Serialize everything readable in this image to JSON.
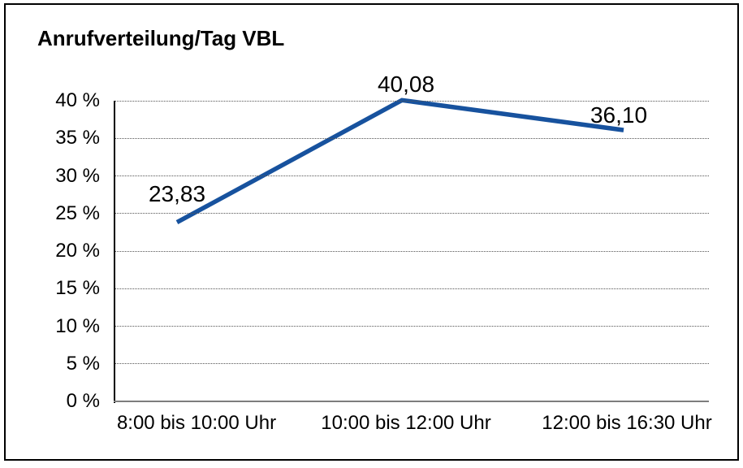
{
  "chart_data": {
    "type": "line",
    "title": "Anrufverteilung/Tag VBL",
    "categories": [
      "8:00 bis 10:00 Uhr",
      "10:00 bis 12:00 Uhr",
      "12:00 bis 16:30 Uhr"
    ],
    "series": [
      {
        "name": "Anrufverteilung",
        "values": [
          23.83,
          40.08,
          36.1
        ]
      }
    ],
    "point_labels": [
      "23,83",
      "40,08",
      "36,10"
    ],
    "xlabel": "",
    "ylabel": "",
    "ylim": [
      0,
      40
    ],
    "ytick_step": 5,
    "ytick_labels": [
      "0 %",
      "5 %",
      "10 %",
      "15 %",
      "20 %",
      "25 %",
      "30 %",
      "35 %",
      "40 %"
    ],
    "grid": "horizontal-dotted",
    "legend": "none",
    "line_color": "#17529E",
    "axis_color": "#000000",
    "baseline_color": "#7D7D7D",
    "grid_color": "#555555",
    "border_color": "#000000",
    "background": "#FFFFFF"
  }
}
